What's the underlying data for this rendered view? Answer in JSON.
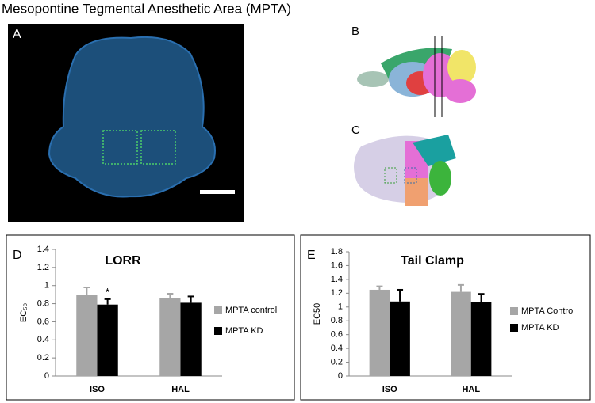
{
  "title": "Mesopontine Tegmental Anesthetic Area (MPTA)",
  "panels": {
    "a": "A",
    "b": "B",
    "c": "C"
  },
  "chart_data": [
    {
      "type": "bar",
      "label": "D",
      "title": "LORR",
      "y_label": "EC₅₀",
      "categories": [
        "ISO",
        "HAL"
      ],
      "series": [
        {
          "name": "MPTA control",
          "color": "#a6a6a6",
          "values": [
            0.9,
            0.86
          ],
          "errors": [
            0.08,
            0.05
          ]
        },
        {
          "name": "MPTA KD",
          "color": "#000000",
          "values": [
            0.79,
            0.81
          ],
          "errors": [
            0.06,
            0.07
          ]
        }
      ],
      "annotations": [
        "*"
      ],
      "ylim": [
        0,
        1.4
      ],
      "yticks": [
        0,
        0.2,
        0.4,
        0.6,
        0.8,
        1,
        1.2,
        1.4
      ]
    },
    {
      "type": "bar",
      "label": "E",
      "title": "Tail Clamp",
      "y_label": "EC50",
      "categories": [
        "ISO",
        "HAL"
      ],
      "series": [
        {
          "name": "MPTA Control",
          "color": "#a6a6a6",
          "values": [
            1.25,
            1.22
          ],
          "errors": [
            0.05,
            0.1
          ]
        },
        {
          "name": "MPTA KD",
          "color": "#000000",
          "values": [
            1.08,
            1.07
          ],
          "errors": [
            0.17,
            0.12
          ]
        }
      ],
      "ylim": [
        0,
        1.8
      ],
      "yticks": [
        0,
        0.2,
        0.4,
        0.6,
        0.8,
        1,
        1.2,
        1.4,
        1.6,
        1.8
      ]
    }
  ]
}
